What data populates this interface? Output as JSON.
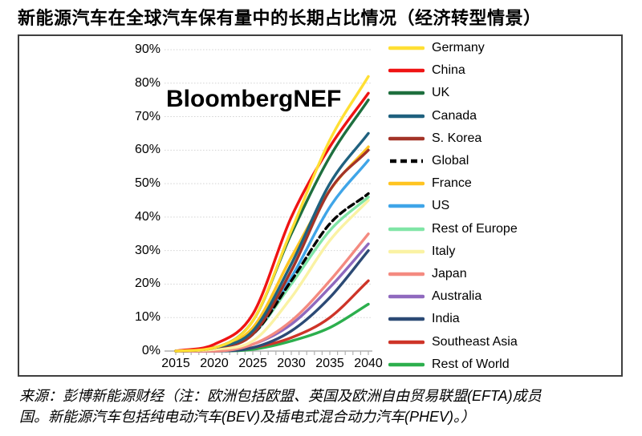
{
  "page": {
    "title": "新能源汽车在全球汽车保有量中的长期占比情况（经济转型情景）",
    "watermark": "BloombergNEF",
    "source_line1": "来源：彭博新能源财经（注：欧洲包括欧盟、英国及欧洲自由贸易联盟(EFTA)成员",
    "source_line2": "国。新能源汽车包括纯电动汽车(BEV)及插电式混合动力汽车(PHEV)。）"
  },
  "chart_data": {
    "type": "line",
    "title": "新能源汽车在全球汽车保有量中的长期占比情况（经济转型情景）",
    "watermark": "BloombergNEF",
    "x": [
      2015,
      2020,
      2025,
      2030,
      2035,
      2040
    ],
    "x_tick_labels": [
      "2015",
      "2020",
      "2025",
      "2030",
      "2035",
      "2040"
    ],
    "x_minor_tick_step_years": 1,
    "xlim": [
      2015,
      2040
    ],
    "y_tick_labels": [
      "0%",
      "10%",
      "20%",
      "30%",
      "40%",
      "50%",
      "60%",
      "70%",
      "80%",
      "90%"
    ],
    "ylim": [
      0,
      90
    ],
    "y_unit": "%",
    "grid": "horizontal-dotted",
    "grid_color": "#d2d2d2",
    "axis_color": "#b0b0b0",
    "legend_position": "right",
    "series": [
      {
        "name": "Germany",
        "color": "#FFDF33",
        "dash": false,
        "values": [
          0,
          1,
          9,
          36,
          63,
          82
        ]
      },
      {
        "name": "China",
        "color": "#EF1313",
        "dash": false,
        "values": [
          0,
          2,
          11,
          40,
          61,
          77
        ]
      },
      {
        "name": "UK",
        "color": "#1E6F3E",
        "dash": false,
        "values": [
          0,
          1,
          9,
          35,
          58,
          75
        ]
      },
      {
        "name": "Canada",
        "color": "#1F617F",
        "dash": false,
        "values": [
          0,
          1,
          6,
          26,
          50,
          65
        ]
      },
      {
        "name": "S. Korea",
        "color": "#A33327",
        "dash": false,
        "values": [
          0,
          1,
          5,
          24,
          48,
          60
        ]
      },
      {
        "name": "Global",
        "color": "#000000",
        "dash": true,
        "values": [
          0,
          1,
          5,
          21,
          38,
          47
        ]
      },
      {
        "name": "France",
        "color": "#FFC421",
        "dash": false,
        "values": [
          0,
          1,
          7,
          28,
          48,
          61
        ]
      },
      {
        "name": "US",
        "color": "#3FA5E8",
        "dash": false,
        "values": [
          0,
          1,
          5,
          22,
          43,
          57
        ]
      },
      {
        "name": "Rest of Europe",
        "color": "#80E5A6",
        "dash": false,
        "values": [
          0,
          1,
          5,
          20,
          36,
          46
        ]
      },
      {
        "name": "Italy",
        "color": "#FAF2A4",
        "dash": false,
        "values": [
          0,
          0.5,
          3,
          16,
          33,
          45
        ]
      },
      {
        "name": "Japan",
        "color": "#F48A80",
        "dash": false,
        "values": [
          0,
          0,
          2,
          9,
          21,
          35
        ]
      },
      {
        "name": "Australia",
        "color": "#8F69BE",
        "dash": false,
        "values": [
          0,
          0,
          2,
          8,
          19,
          32
        ]
      },
      {
        "name": "India",
        "color": "#2C4A75",
        "dash": false,
        "values": [
          0,
          0,
          1,
          6,
          16,
          30
        ]
      },
      {
        "name": "Southeast Asia",
        "color": "#CE3428",
        "dash": false,
        "values": [
          0,
          0,
          1,
          4,
          10,
          21
        ]
      },
      {
        "name": "Rest of World",
        "color": "#2CAF4D",
        "dash": false,
        "values": [
          0,
          0,
          0.5,
          3,
          7,
          14
        ]
      }
    ]
  }
}
